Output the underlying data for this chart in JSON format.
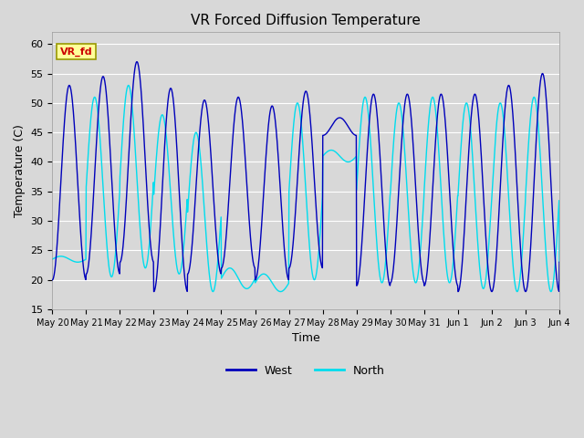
{
  "title": "VR Forced Diffusion Temperature",
  "xlabel": "Time",
  "ylabel": "Temperature (C)",
  "ylim": [
    15,
    62
  ],
  "yticks": [
    15,
    20,
    25,
    30,
    35,
    40,
    45,
    50,
    55,
    60
  ],
  "background_color": "#d8d8d8",
  "plot_bg_color": "#d8d8d8",
  "grid_color": "#ffffff",
  "west_color": "#0000bb",
  "north_color": "#00ddee",
  "annotation_text": "VR_fd",
  "annotation_color": "#cc0000",
  "annotation_bg": "#ffff99",
  "annotation_border": "#999900",
  "x_tick_labels": [
    "May 20",
    "May 21",
    "May 22",
    "May 23",
    "May 24",
    "May 25",
    "May 26",
    "May 27",
    "May 28",
    "May 29",
    "May 30",
    "May 31",
    "Jun 1",
    "Jun 2",
    "Jun 3",
    "Jun 4"
  ],
  "num_days": 16,
  "west_peaks": [
    53.0,
    54.5,
    57.0,
    52.5,
    50.5,
    51.0,
    49.5,
    52.0,
    47.5,
    51.5,
    51.5,
    51.5,
    51.5,
    53.0,
    55.0,
    23.5
  ],
  "west_mins": [
    20.0,
    21.0,
    23.0,
    18.0,
    21.0,
    22.0,
    20.0,
    22.0,
    44.5,
    19.0,
    19.5,
    19.0,
    18.0,
    18.0,
    18.0,
    23.0
  ],
  "north_peaks": [
    24.0,
    51.0,
    53.0,
    48.0,
    45.0,
    22.0,
    21.0,
    50.0,
    42.0,
    51.0,
    50.0,
    51.0,
    50.0,
    50.0,
    51.0,
    23.0
  ],
  "north_mins": [
    23.0,
    20.5,
    22.0,
    21.0,
    18.0,
    18.5,
    18.0,
    20.0,
    40.0,
    19.5,
    19.5,
    19.5,
    18.5,
    18.0,
    18.0,
    23.0
  ],
  "north_phase_shift": 0.25,
  "figwidth": 6.4,
  "figheight": 4.8,
  "dpi": 100
}
